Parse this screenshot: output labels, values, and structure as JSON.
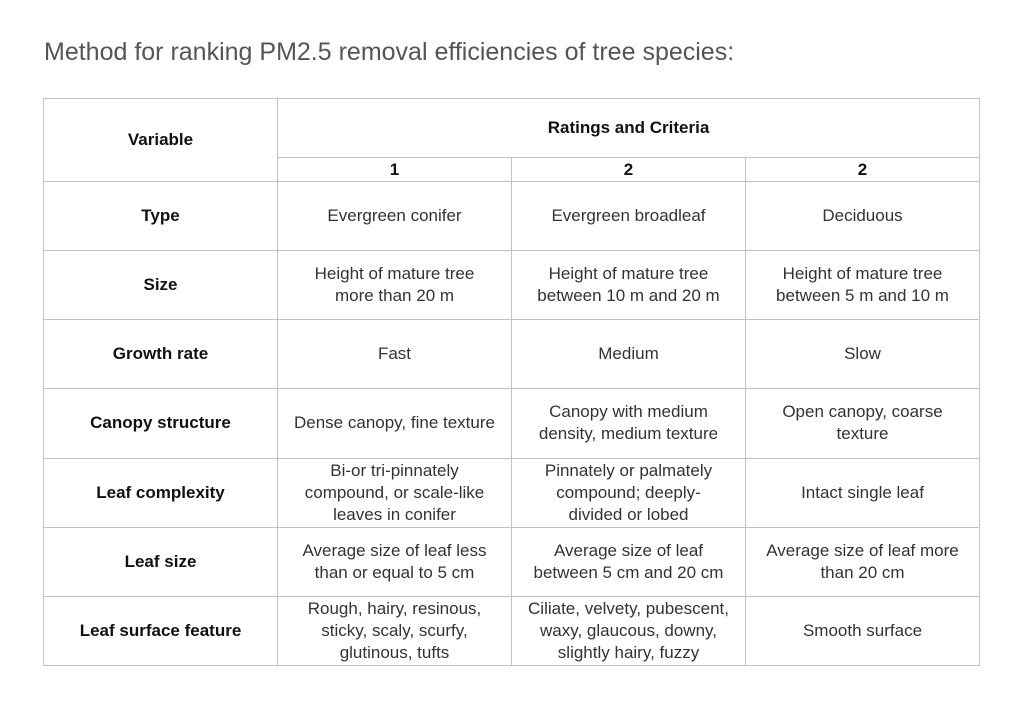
{
  "title": "Method for ranking PM2.5 removal efficiencies of tree species:",
  "header": {
    "variable": "Variable",
    "ratings": "Ratings and Criteria",
    "ratings_cols": [
      "1",
      "2",
      "2"
    ]
  },
  "rows": [
    {
      "variable": "Type",
      "cells": [
        [
          "Evergreen conifer"
        ],
        [
          "Evergreen broadleaf"
        ],
        [
          "Deciduous"
        ]
      ]
    },
    {
      "variable": "Size",
      "cells": [
        [
          "Height of mature tree",
          "more than 20 m"
        ],
        [
          "Height of mature tree",
          "between 10 m and 20 m"
        ],
        [
          "Height of mature tree",
          "between 5 m and 10 m"
        ]
      ]
    },
    {
      "variable": "Growth rate",
      "cells": [
        [
          "Fast"
        ],
        [
          "Medium"
        ],
        [
          "Slow"
        ]
      ]
    },
    {
      "variable": "Canopy structure",
      "cells": [
        [
          "Dense canopy, fine texture"
        ],
        [
          "Canopy with medium",
          "density, medium texture"
        ],
        [
          "Open canopy, coarse",
          "texture"
        ]
      ]
    },
    {
      "variable": "Leaf complexity",
      "cells": [
        [
          "Bi-or tri-pinnately",
          "compound, or scale-like",
          "leaves in conifer"
        ],
        [
          "Pinnately or palmately",
          "compound; deeply-",
          "divided or lobed"
        ],
        [
          "Intact single leaf"
        ]
      ]
    },
    {
      "variable": "Leaf size",
      "cells": [
        [
          "Average size of leaf less",
          "than or equal to 5 cm"
        ],
        [
          "Average size of leaf",
          "between 5 cm and 20 cm"
        ],
        [
          "Average size of leaf more",
          "than 20 cm"
        ]
      ]
    },
    {
      "variable": "Leaf surface feature",
      "cells": [
        [
          "Rough, hairy, resinous,",
          "sticky, scaly, scurfy,",
          "glutinous, tufts"
        ],
        [
          "Ciliate, velvety, pubescent,",
          "waxy, glaucous, downy,",
          "slightly hairy, fuzzy"
        ],
        [
          "Smooth surface"
        ]
      ]
    }
  ]
}
